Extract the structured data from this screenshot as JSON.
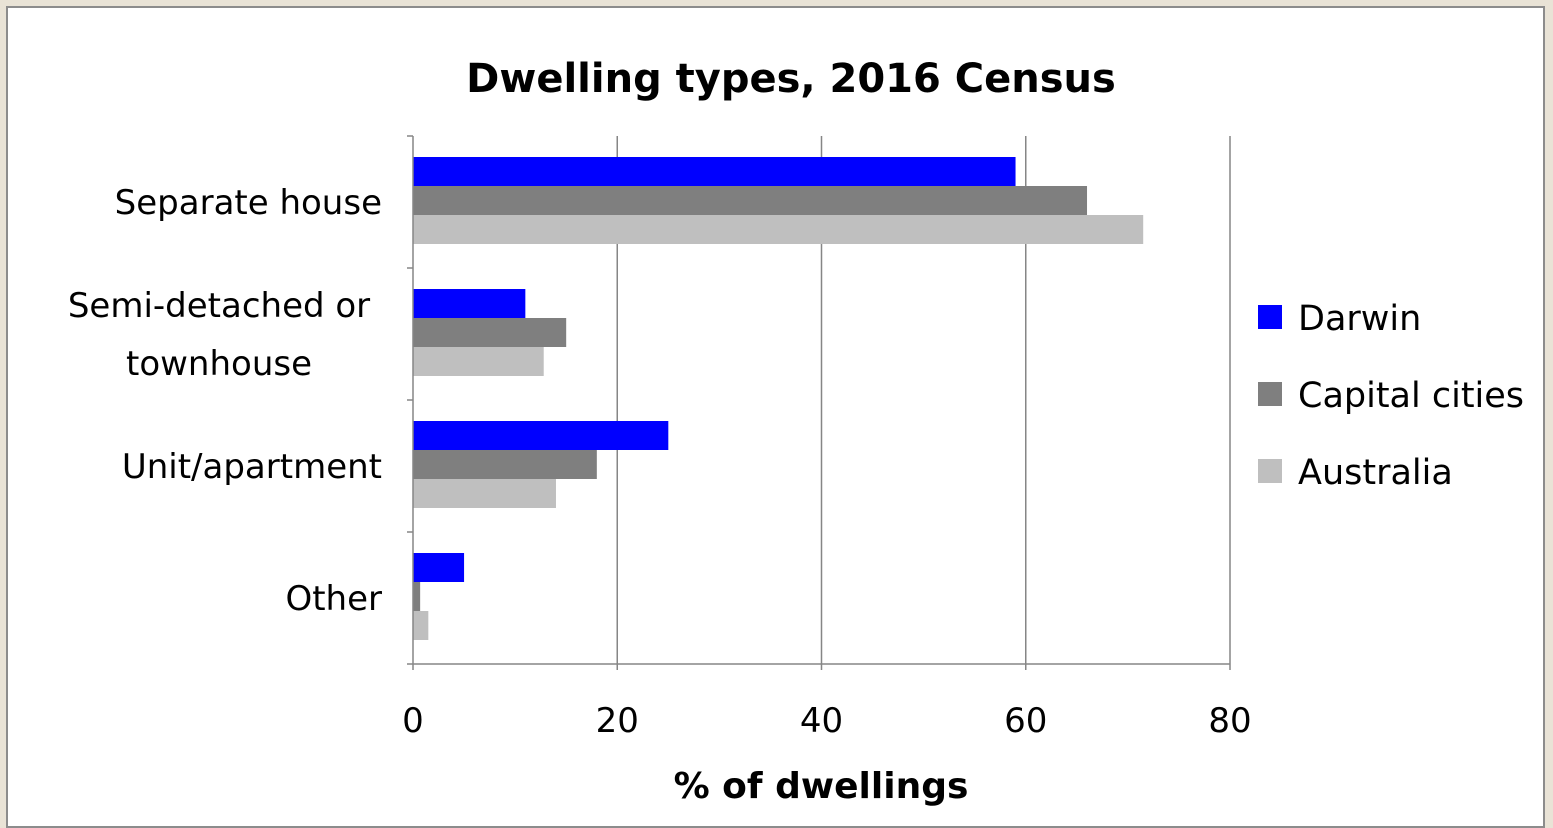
{
  "chart_data": {
    "type": "bar",
    "orientation": "horizontal",
    "title": "Dwelling types, 2016 Census",
    "xlabel": "% of dwellings",
    "ylabel": "",
    "categories": [
      [
        "Separate house"
      ],
      [
        "Semi-detached or",
        "townhouse"
      ],
      [
        "Unit/apartment"
      ],
      [
        "Other"
      ]
    ],
    "series": [
      {
        "name": "Darwin",
        "color": "#0000ff",
        "values": [
          59,
          11,
          25,
          5
        ]
      },
      {
        "name": "Capital cities",
        "color": "#7f7f7f",
        "values": [
          66,
          15,
          18,
          0.7
        ]
      },
      {
        "name": "Australia",
        "color": "#bfbfbf",
        "values": [
          71.5,
          12.8,
          14,
          1.5
        ]
      }
    ],
    "xlim": [
      0,
      80
    ],
    "xticks": [
      0,
      20,
      40,
      60,
      80
    ],
    "grid": "vertical",
    "legend_position": "right"
  }
}
